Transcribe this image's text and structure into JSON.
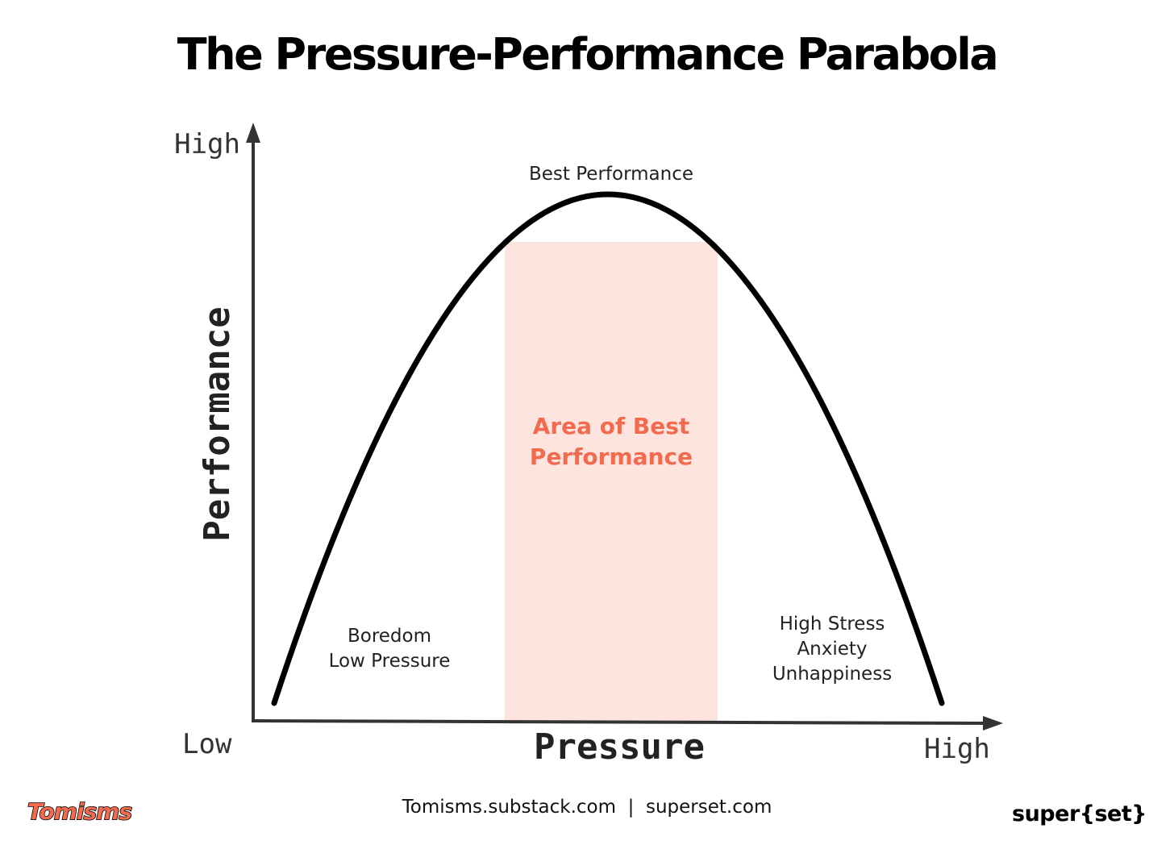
{
  "title": "The Pressure-Performance Parabola",
  "chart": {
    "y_axis": {
      "label": "Performance",
      "high_label": "High"
    },
    "x_axis": {
      "label": "Pressure",
      "low_label": "Low",
      "high_label": "High"
    },
    "peak_label": "Best Performance",
    "zone": {
      "line1": "Area of Best",
      "line2": "Performance"
    },
    "left_region": {
      "line1": "Boredom",
      "line2": "Low Pressure"
    },
    "right_region": {
      "line1": "High Stress",
      "line2": "Anxiety",
      "line3": "Unhappiness"
    }
  },
  "footer": {
    "logo": "Tomisms",
    "links": "Tomisms.substack.com  |  superset.com",
    "brand": "super{set}"
  },
  "colors": {
    "accent": "#f26b4f",
    "zone_fill": "#fde4de",
    "curve": "#000000",
    "axis": "#333333",
    "text": "#222222"
  }
}
